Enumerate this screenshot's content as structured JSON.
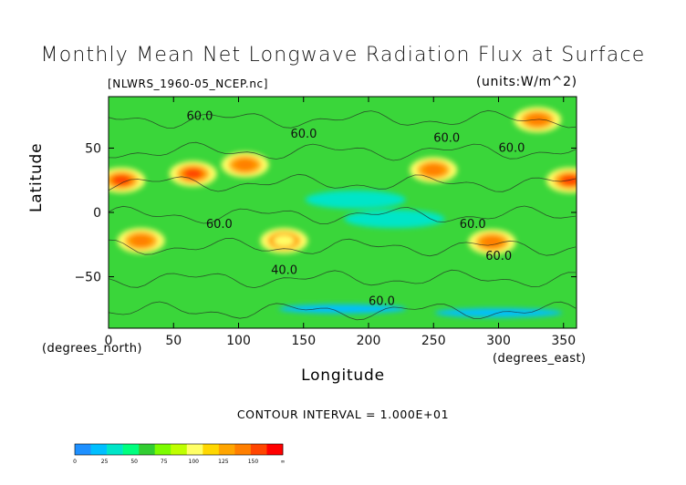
{
  "chart_data": {
    "type": "heatmap",
    "title": "Monthly Mean Net Longwave Radiation Flux at Surface",
    "file_label": "[NLWRS_1960-05_NCEP.nc]",
    "units_label": "(units:W/m^2)",
    "xlabel": "Longitude",
    "ylabel": "Latitude",
    "x_unit_label": "(degrees_east)",
    "y_unit_label": "(degrees_north)",
    "xlim": [
      0,
      360
    ],
    "ylim": [
      -90,
      90
    ],
    "x_ticks": [
      "0",
      "50",
      "100",
      "150",
      "200",
      "250",
      "300",
      "350"
    ],
    "y_ticks": [
      "50",
      "0",
      "-50"
    ],
    "contour_interval_text": "CONTOUR INTERVAL = 1.000E+01",
    "contour_labels": [
      "60.0",
      "60.0",
      "60.0",
      "60.0",
      "60.0",
      "60.0",
      "60.0",
      "40.0",
      "60.0"
    ],
    "colorbar": {
      "levels": [
        "0",
        "25",
        "50",
        "75",
        "100",
        "125",
        "150",
        "∞"
      ],
      "colors": [
        "#1e90ff",
        "#00bfff",
        "#00e5c8",
        "#00ff7f",
        "#32cd32",
        "#7cfc00",
        "#bfff00",
        "#ffff66",
        "#ffd700",
        "#ffa500",
        "#ff7f00",
        "#ff4500",
        "#ff0000"
      ]
    },
    "field": {
      "background_level": "50-75",
      "high_regions_lon_lat": [
        {
          "lon": 10,
          "lat": 25,
          "level": "150+"
        },
        {
          "lon": 65,
          "lat": 30,
          "level": "150+"
        },
        {
          "lon": 105,
          "lat": 37,
          "level": "125-150"
        },
        {
          "lon": 250,
          "lat": 33,
          "level": "125-150"
        },
        {
          "lon": 355,
          "lat": 25,
          "level": "150+"
        },
        {
          "lon": 25,
          "lat": -22,
          "level": "125-150"
        },
        {
          "lon": 295,
          "lat": -23,
          "level": "125-150"
        },
        {
          "lon": 135,
          "lat": -22,
          "level": "100-125"
        },
        {
          "lon": 330,
          "lat": 72,
          "level": "125-150"
        }
      ],
      "low_regions_lon_lat": [
        {
          "lon": 190,
          "lat": 10,
          "level": "25-50"
        },
        {
          "lon": 220,
          "lat": -5,
          "level": "25-50"
        },
        {
          "lon": 180,
          "lat": -75,
          "level": "0-25"
        },
        {
          "lon": 300,
          "lat": -78,
          "level": "0-25"
        }
      ]
    }
  }
}
